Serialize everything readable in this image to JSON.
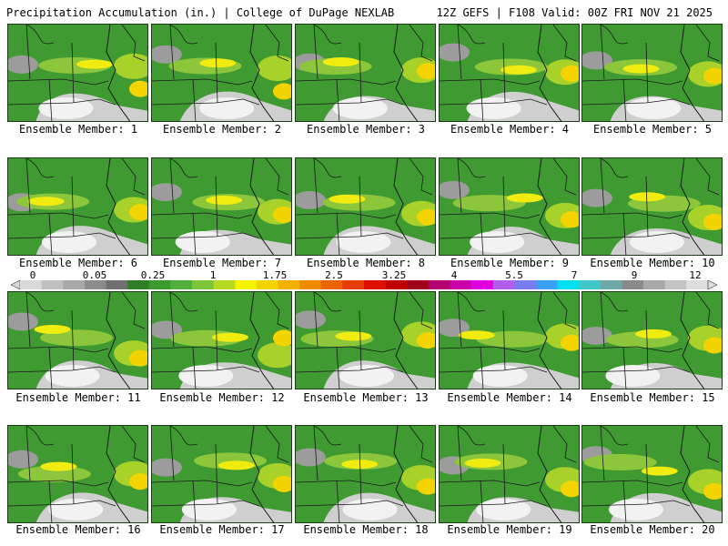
{
  "header": {
    "left_title": "Precipitation Accumulation (in.) | College of DuPage NEXLAB",
    "right_title": "12Z GEFS | F108 Valid: 00Z FRI NOV 21 2025"
  },
  "member_label_prefix": "Ensemble Member:",
  "members": [
    1,
    2,
    3,
    4,
    5,
    6,
    7,
    8,
    9,
    10,
    11,
    12,
    13,
    14,
    15,
    16,
    17,
    18,
    19,
    20
  ],
  "member_labels": [
    "Ensemble Member: 1",
    "Ensemble Member: 2",
    "Ensemble Member: 3",
    "Ensemble Member: 4",
    "Ensemble Member: 5",
    "Ensemble Member: 6",
    "Ensemble Member: 7",
    "Ensemble Member: 8",
    "Ensemble Member: 9",
    "Ensemble Member: 10",
    "Ensemble Member: 11",
    "Ensemble Member: 12",
    "Ensemble Member: 13",
    "Ensemble Member: 14",
    "Ensemble Member: 15",
    "Ensemble Member: 16",
    "Ensemble Member: 17",
    "Ensemble Member: 18",
    "Ensemble Member: 19",
    "Ensemble Member: 20"
  ],
  "colorbar": {
    "labels": [
      "0",
      "0.05",
      "0.25",
      "1",
      "1.75",
      "2.5",
      "3.25",
      "4",
      "5.5",
      "7",
      "9",
      "12"
    ],
    "colors": [
      "#d9d9d9",
      "#c0c0c0",
      "#a8a8a8",
      "#8c8c8c",
      "#707070",
      "#2f7d24",
      "#3b9a2e",
      "#52b13d",
      "#7dc637",
      "#b6d923",
      "#f4f400",
      "#f3d300",
      "#f5b000",
      "#f08a00",
      "#ec6400",
      "#e53e00",
      "#dc0f00",
      "#c00000",
      "#a0001c",
      "#b4006e",
      "#cc00aa",
      "#e000e0",
      "#b35cf0",
      "#7a7af5",
      "#3aa0f5",
      "#00e0f0",
      "#40c8c8",
      "#6fa8a8",
      "#8a8a8a",
      "#a8a8a8",
      "#c4c4c4",
      "#dedede"
    ]
  }
}
